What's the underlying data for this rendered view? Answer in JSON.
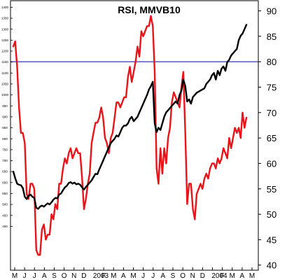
{
  "chart_data": {
    "type": "line",
    "title": "RSI, MMVB10",
    "x_labels": [
      "M",
      "J",
      "J",
      "A",
      "S",
      "O",
      "N",
      "D",
      "2003",
      "F",
      "M",
      "A",
      "M",
      "J",
      "J",
      "A",
      "S",
      "O",
      "N",
      "D",
      "2004",
      "F",
      "M",
      "A",
      "M"
    ],
    "y_right": {
      "range": [
        39,
        92
      ],
      "ticks": [
        40,
        45,
        50,
        55,
        60,
        65,
        70,
        75,
        80,
        85,
        90
      ]
    },
    "y_left": {
      "range": [
        200,
        1430
      ],
      "ticks": [
        "400",
        "450",
        "500",
        "550",
        "600",
        "650",
        "700",
        "750",
        "800",
        "850",
        "900",
        "950",
        "1000",
        "1050",
        "1100",
        "1150",
        "1200",
        "1250",
        "1300",
        "1350",
        "1400"
      ]
    },
    "reference_line": {
      "value": 80,
      "color": "#1f1fa8"
    },
    "grid": false,
    "legend": "none",
    "series": [
      {
        "role": "rsi",
        "axis": "right",
        "color": "#e8141a",
        "values": [
          83,
          84,
          79,
          71,
          66,
          66,
          64,
          54,
          53,
          56,
          56,
          55,
          43,
          42,
          42,
          47,
          48,
          45,
          46,
          46,
          50,
          49,
          52,
          51,
          56,
          56,
          59,
          61,
          60,
          62,
          63,
          61,
          62,
          63,
          62,
          62,
          57,
          51,
          53,
          56,
          58,
          64,
          66,
          68,
          68,
          69,
          71,
          69,
          65,
          64,
          62,
          65,
          66,
          69,
          72,
          72,
          71,
          72,
          73,
          73,
          77,
          79,
          76,
          78,
          80,
          83,
          81,
          86,
          85,
          86,
          87,
          87,
          89,
          87,
          78,
          59,
          56,
          63,
          58,
          63,
          60,
          65,
          67,
          72,
          74,
          73,
          72,
          71,
          75,
          78,
          66,
          52,
          56,
          56,
          51,
          49,
          54,
          55,
          56,
          55,
          57,
          58,
          57,
          59,
          60,
          60,
          59,
          61,
          60,
          61,
          63,
          62,
          61,
          65,
          63,
          65,
          67,
          66,
          67,
          65,
          70,
          67,
          69
        ]
      },
      {
        "role": "index",
        "axis": "left",
        "color": "#000000",
        "values": [
          650,
          620,
          595,
          590,
          588,
          575,
          535,
          525,
          540,
          545,
          535,
          530,
          485,
          480,
          490,
          495,
          490,
          498,
          505,
          500,
          510,
          522,
          530,
          528,
          545,
          550,
          565,
          578,
          585,
          598,
          602,
          595,
          600,
          592,
          595,
          590,
          578,
          568,
          580,
          590,
          600,
          610,
          625,
          640,
          638,
          660,
          680,
          700,
          720,
          740,
          760,
          780,
          790,
          800,
          815,
          810,
          830,
          850,
          860,
          860,
          870,
          890,
          900,
          880,
          890,
          900,
          920,
          940,
          960,
          980,
          1000,
          1025,
          1040,
          1060,
          870,
          830,
          850,
          840,
          870,
          900,
          920,
          930,
          940,
          950,
          960,
          970,
          960,
          1000,
          1020,
          1070,
          1040,
          970,
          980,
          960,
          990,
          1000,
          1010,
          1015,
          1020,
          1025,
          1030,
          1050,
          1060,
          1070,
          1090,
          1100,
          1070,
          1110,
          1090,
          1120,
          1130,
          1110,
          1150,
          1160,
          1180,
          1190,
          1200,
          1210,
          1250,
          1270,
          1280,
          1300,
          1320
        ]
      }
    ]
  }
}
